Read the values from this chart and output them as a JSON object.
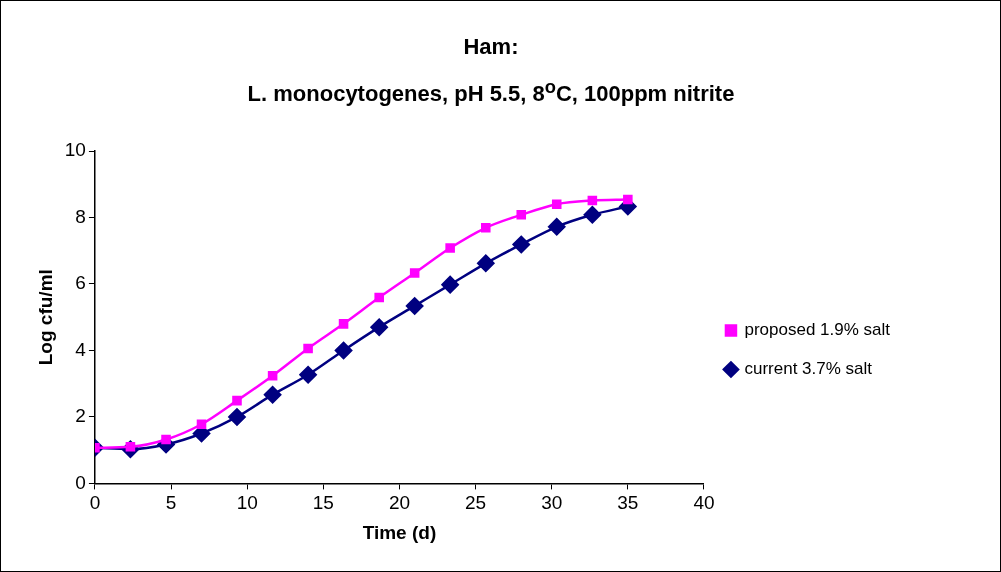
{
  "chart_data": {
    "type": "line",
    "title": "Ham:\nL. monocytogenes, pH 5.5, 8$^{o}$C, 100ppm nitrite",
    "xlabel": "Time (d)",
    "ylabel": "Log cfu/ml",
    "x": [
      0,
      2.33,
      4.67,
      7,
      9.33,
      11.67,
      14,
      16.33,
      18.67,
      21,
      23.33,
      25.67,
      28,
      30.33,
      32.67,
      35
    ],
    "series": [
      {
        "name": "current 3.7% salt",
        "color": "#000080",
        "marker": "diamond",
        "values": [
          1.07,
          1.03,
          1.17,
          1.5,
          2.0,
          2.67,
          3.27,
          4.0,
          4.7,
          5.34,
          5.98,
          6.62,
          7.19,
          7.72,
          8.08,
          8.33
        ]
      },
      {
        "name": "proposed 1.9% salt",
        "color": "#ff00ff",
        "marker": "square",
        "values": [
          1.07,
          1.1,
          1.32,
          1.78,
          2.49,
          3.24,
          4.06,
          4.8,
          5.59,
          6.33,
          7.08,
          7.69,
          8.08,
          8.4,
          8.51,
          8.54
        ]
      }
    ],
    "xlim": [
      0,
      40
    ],
    "xticks": [
      0,
      5,
      10,
      15,
      20,
      25,
      30,
      35,
      40
    ],
    "ylim": [
      0,
      10
    ],
    "yticks": [
      0,
      2,
      4,
      6,
      8,
      10
    ],
    "grid": false,
    "legend": "right",
    "line_style": "solid"
  }
}
